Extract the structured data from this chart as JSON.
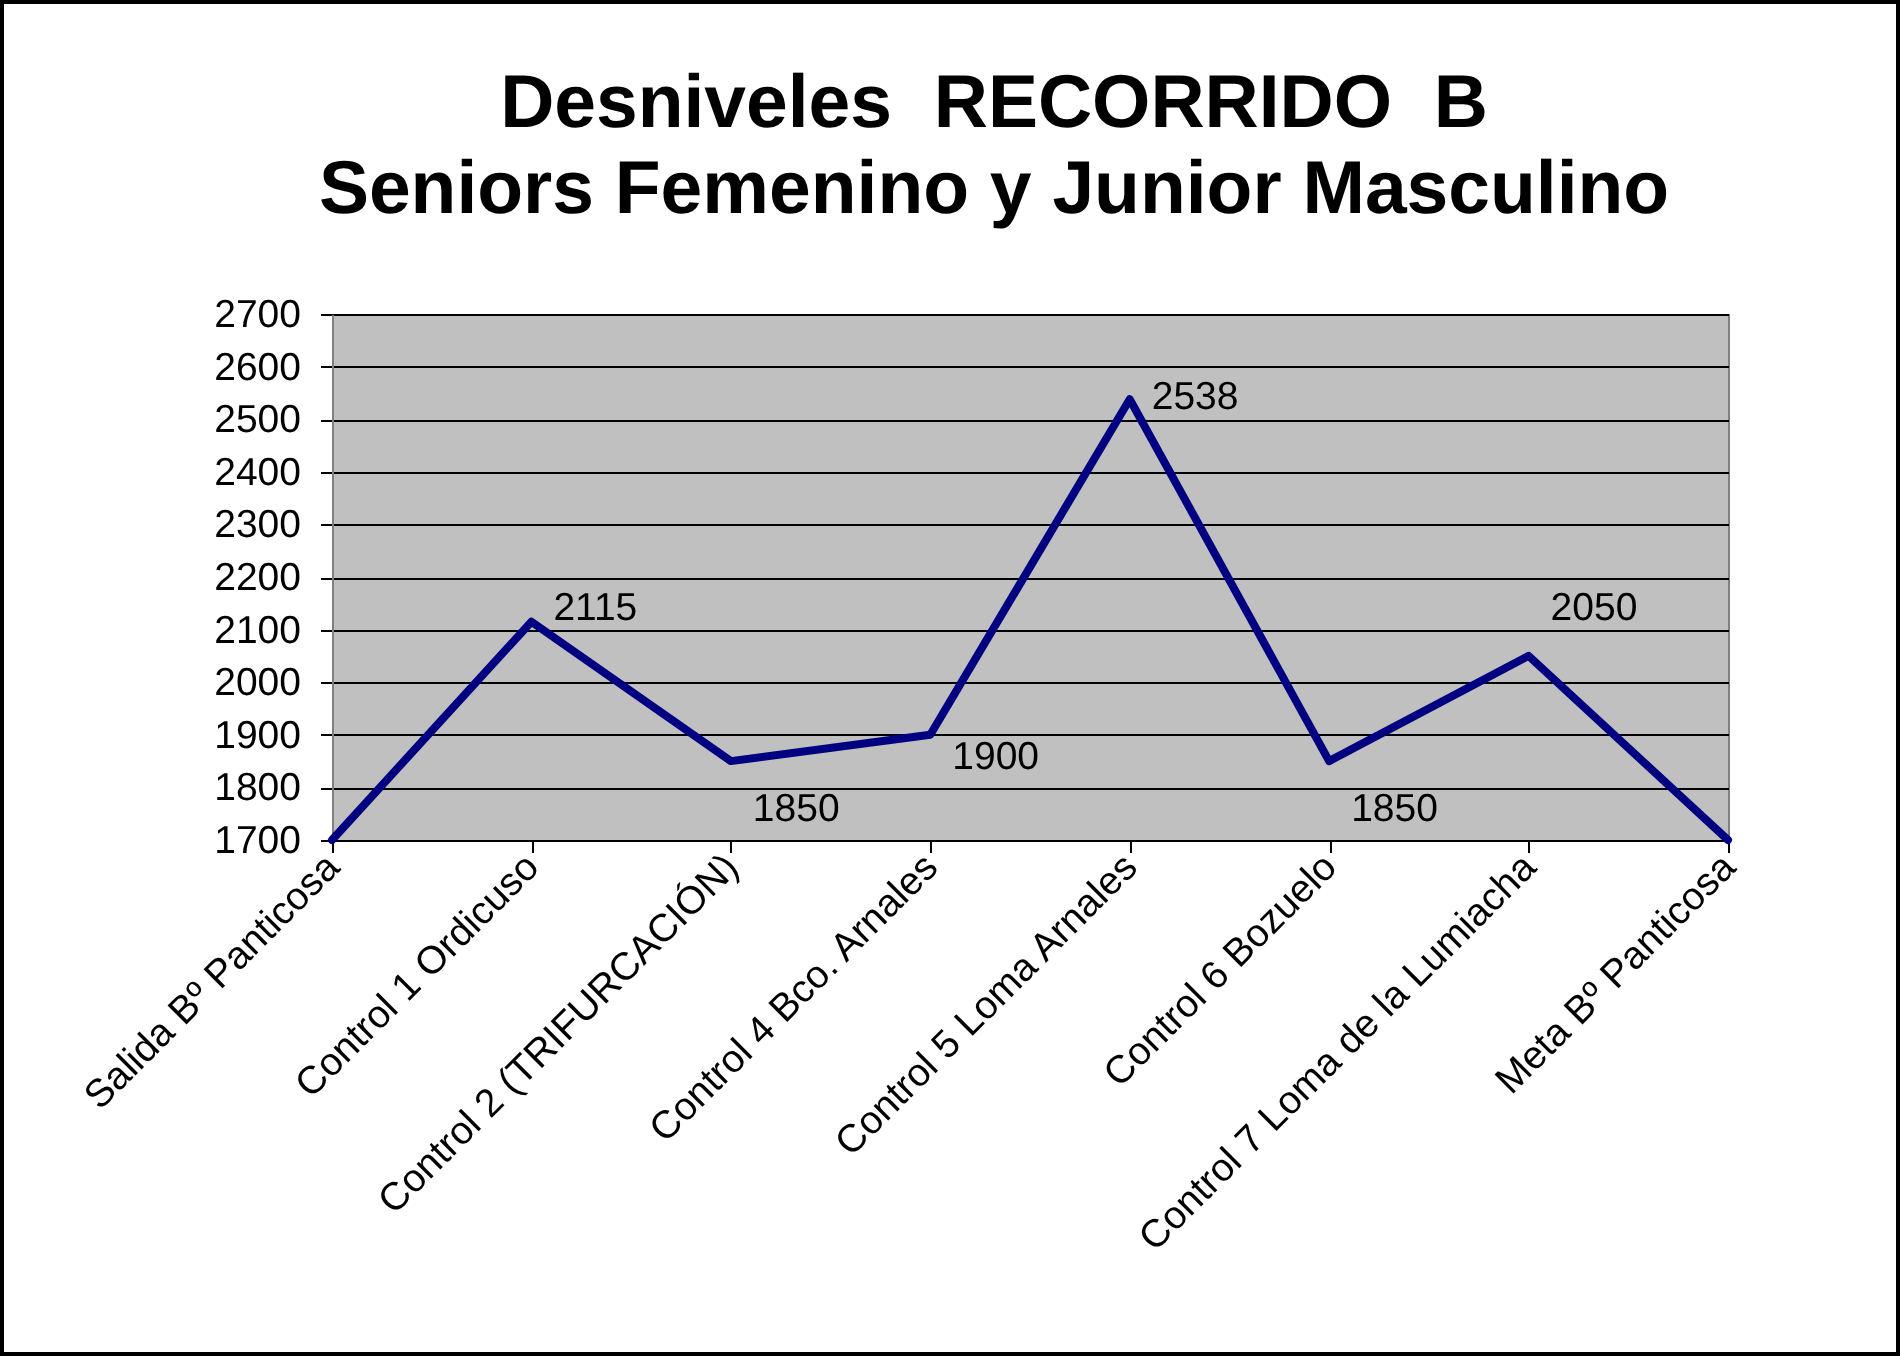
{
  "chart_data": {
    "type": "line",
    "title": "Desniveles  RECORRIDO  B\nSeniors Femenino y Junior Masculino",
    "categories": [
      "Salida Bº Panticosa",
      "Control 1 Ordicuso",
      "Control 2 (TRIFURCACIÓN)",
      "Control 4 Bco. Arnales",
      "Control 5 Loma Arnales",
      "Control 6 Bozuelo",
      "Control 7 Loma de la Lumiacha",
      "Meta Bº Panticosa"
    ],
    "series": [
      {
        "color": "#000080",
        "values": [
          1700,
          2115,
          1850,
          1900,
          2538,
          1850,
          2050,
          1700
        ],
        "value_labels": [
          null,
          "2115",
          "1850",
          "1900",
          "2538",
          "1850",
          "2050",
          null
        ]
      }
    ],
    "ylim": [
      1700,
      2700
    ],
    "yticks": [
      1700,
      1800,
      1900,
      2000,
      2100,
      2200,
      2300,
      2400,
      2500,
      2600,
      2700
    ],
    "grid": "y",
    "marker": "none",
    "line_style": "solid"
  }
}
